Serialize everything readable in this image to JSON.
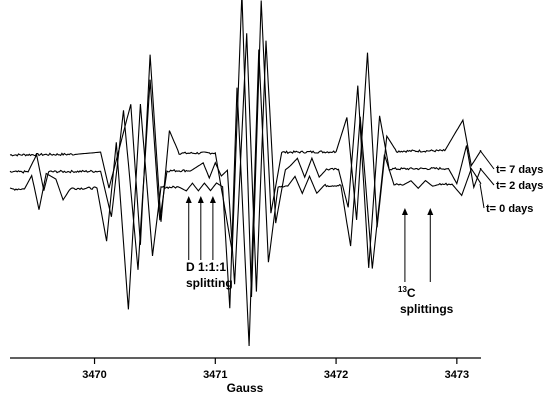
{
  "chart_data": {
    "type": "line",
    "xlabel": "Gauss",
    "xlim": [
      3469.3,
      3473.2
    ],
    "xticks": [
      3470,
      3471,
      3472,
      3473
    ],
    "xtick_labels": [
      "3470",
      "3471",
      "3472",
      "3473"
    ],
    "ylabel": "",
    "grid": false,
    "series": [
      {
        "name": "t= 7 days",
        "baseline": 0.45,
        "drift": 0.12,
        "points": [
          [
            3469.3,
            0.0
          ],
          [
            3469.85,
            0.0
          ],
          [
            3470.05,
            0.05
          ],
          [
            3470.12,
            -0.9
          ],
          [
            3470.3,
            1.3
          ],
          [
            3470.38,
            -2.4
          ],
          [
            3470.46,
            2.6
          ],
          [
            3470.55,
            -1.8
          ],
          [
            3470.62,
            0.6
          ],
          [
            3470.7,
            0.0
          ],
          [
            3471.0,
            0.0
          ],
          [
            3471.14,
            -2.6
          ],
          [
            3471.22,
            4.2
          ],
          [
            3471.3,
            -3.8
          ],
          [
            3471.38,
            4.0
          ],
          [
            3471.46,
            -1.6
          ],
          [
            3471.55,
            0.0
          ],
          [
            3472.0,
            0.0
          ],
          [
            3472.09,
            0.9
          ],
          [
            3472.17,
            -1.8
          ],
          [
            3472.26,
            2.6
          ],
          [
            3472.34,
            -2.0
          ],
          [
            3472.42,
            0.4
          ],
          [
            3472.5,
            0.0
          ],
          [
            3472.9,
            0.0
          ],
          [
            3473.05,
            0.8
          ],
          [
            3473.12,
            -0.4
          ],
          [
            3473.2,
            0.0
          ]
        ]
      },
      {
        "name": "t= 2 days",
        "baseline": 0.0,
        "drift": 0.1,
        "points": [
          [
            3469.3,
            0.0
          ],
          [
            3469.45,
            0.0
          ],
          [
            3469.52,
            0.45
          ],
          [
            3469.58,
            -0.5
          ],
          [
            3469.62,
            0.0
          ],
          [
            3470.05,
            0.0
          ],
          [
            3470.14,
            -1.2
          ],
          [
            3470.24,
            1.6
          ],
          [
            3470.36,
            -2.6
          ],
          [
            3470.46,
            2.4
          ],
          [
            3470.54,
            -1.3
          ],
          [
            3470.6,
            0.0
          ],
          [
            3470.8,
            0.0
          ],
          [
            3470.9,
            0.2
          ],
          [
            3470.95,
            -0.2
          ],
          [
            3471.0,
            0.2
          ],
          [
            3471.05,
            -0.15
          ],
          [
            3471.1,
            0.0
          ],
          [
            3471.16,
            -3.0
          ],
          [
            3471.26,
            3.6
          ],
          [
            3471.34,
            -3.2
          ],
          [
            3471.42,
            3.4
          ],
          [
            3471.5,
            -1.4
          ],
          [
            3471.58,
            0.0
          ],
          [
            3471.62,
            0.1
          ],
          [
            3471.68,
            0.3
          ],
          [
            3471.74,
            -0.2
          ],
          [
            3471.8,
            0.3
          ],
          [
            3471.86,
            -0.2
          ],
          [
            3471.92,
            0.0
          ],
          [
            3472.02,
            0.0
          ],
          [
            3472.1,
            -1.0
          ],
          [
            3472.18,
            2.2
          ],
          [
            3472.27,
            -2.6
          ],
          [
            3472.36,
            1.4
          ],
          [
            3472.44,
            0.0
          ],
          [
            3472.93,
            0.0
          ],
          [
            3473.0,
            -0.4
          ],
          [
            3473.08,
            0.6
          ],
          [
            3473.14,
            -0.5
          ],
          [
            3473.2,
            0.0
          ]
        ]
      },
      {
        "name": "t= 0 days",
        "baseline": -0.45,
        "drift": 0.14,
        "points": [
          [
            3469.3,
            0.0
          ],
          [
            3469.42,
            0.0
          ],
          [
            3469.48,
            0.35
          ],
          [
            3469.54,
            -0.55
          ],
          [
            3469.6,
            0.4
          ],
          [
            3469.68,
            0.25
          ],
          [
            3469.74,
            -0.3
          ],
          [
            3469.8,
            0.0
          ],
          [
            3470.02,
            0.0
          ],
          [
            3470.1,
            -1.4
          ],
          [
            3470.18,
            1.2
          ],
          [
            3470.28,
            -3.2
          ],
          [
            3470.38,
            2.2
          ],
          [
            3470.48,
            -1.8
          ],
          [
            3470.55,
            0.0
          ],
          [
            3470.7,
            0.0
          ],
          [
            3470.76,
            -0.1
          ],
          [
            3470.81,
            0.1
          ],
          [
            3470.86,
            -0.1
          ],
          [
            3470.91,
            0.1
          ],
          [
            3470.96,
            -0.1
          ],
          [
            3471.01,
            0.1
          ],
          [
            3471.06,
            0.0
          ],
          [
            3471.12,
            -3.2
          ],
          [
            3471.18,
            2.6
          ],
          [
            3471.28,
            -4.2
          ],
          [
            3471.36,
            3.6
          ],
          [
            3471.44,
            -2.0
          ],
          [
            3471.52,
            0.0
          ],
          [
            3471.6,
            0.0
          ],
          [
            3471.66,
            0.25
          ],
          [
            3471.72,
            -0.2
          ],
          [
            3471.78,
            0.25
          ],
          [
            3471.84,
            -0.2
          ],
          [
            3471.9,
            0.0
          ],
          [
            3472.04,
            0.0
          ],
          [
            3472.12,
            -1.6
          ],
          [
            3472.2,
            1.8
          ],
          [
            3472.3,
            -2.2
          ],
          [
            3472.4,
            0.8
          ],
          [
            3472.48,
            0.0
          ],
          [
            3472.56,
            0.0
          ],
          [
            3472.62,
            0.1
          ],
          [
            3472.68,
            -0.1
          ],
          [
            3472.74,
            0.1
          ],
          [
            3472.8,
            -0.05
          ],
          [
            3472.86,
            0.0
          ],
          [
            3472.96,
            0.0
          ],
          [
            3473.04,
            -0.3
          ],
          [
            3473.12,
            0.4
          ],
          [
            3473.2,
            0.0
          ]
        ]
      }
    ],
    "annotations": [
      {
        "id": "d-splitting",
        "lines": [
          "D 1:1:1",
          "splitting"
        ],
        "arrow_targets_x": [
          3470.78,
          3470.88,
          3470.98
        ]
      },
      {
        "id": "c13-splitting",
        "superscript": "13",
        "main": "C",
        "line2": "splittings",
        "arrow_targets_x": [
          3472.57,
          3472.78
        ]
      }
    ]
  }
}
